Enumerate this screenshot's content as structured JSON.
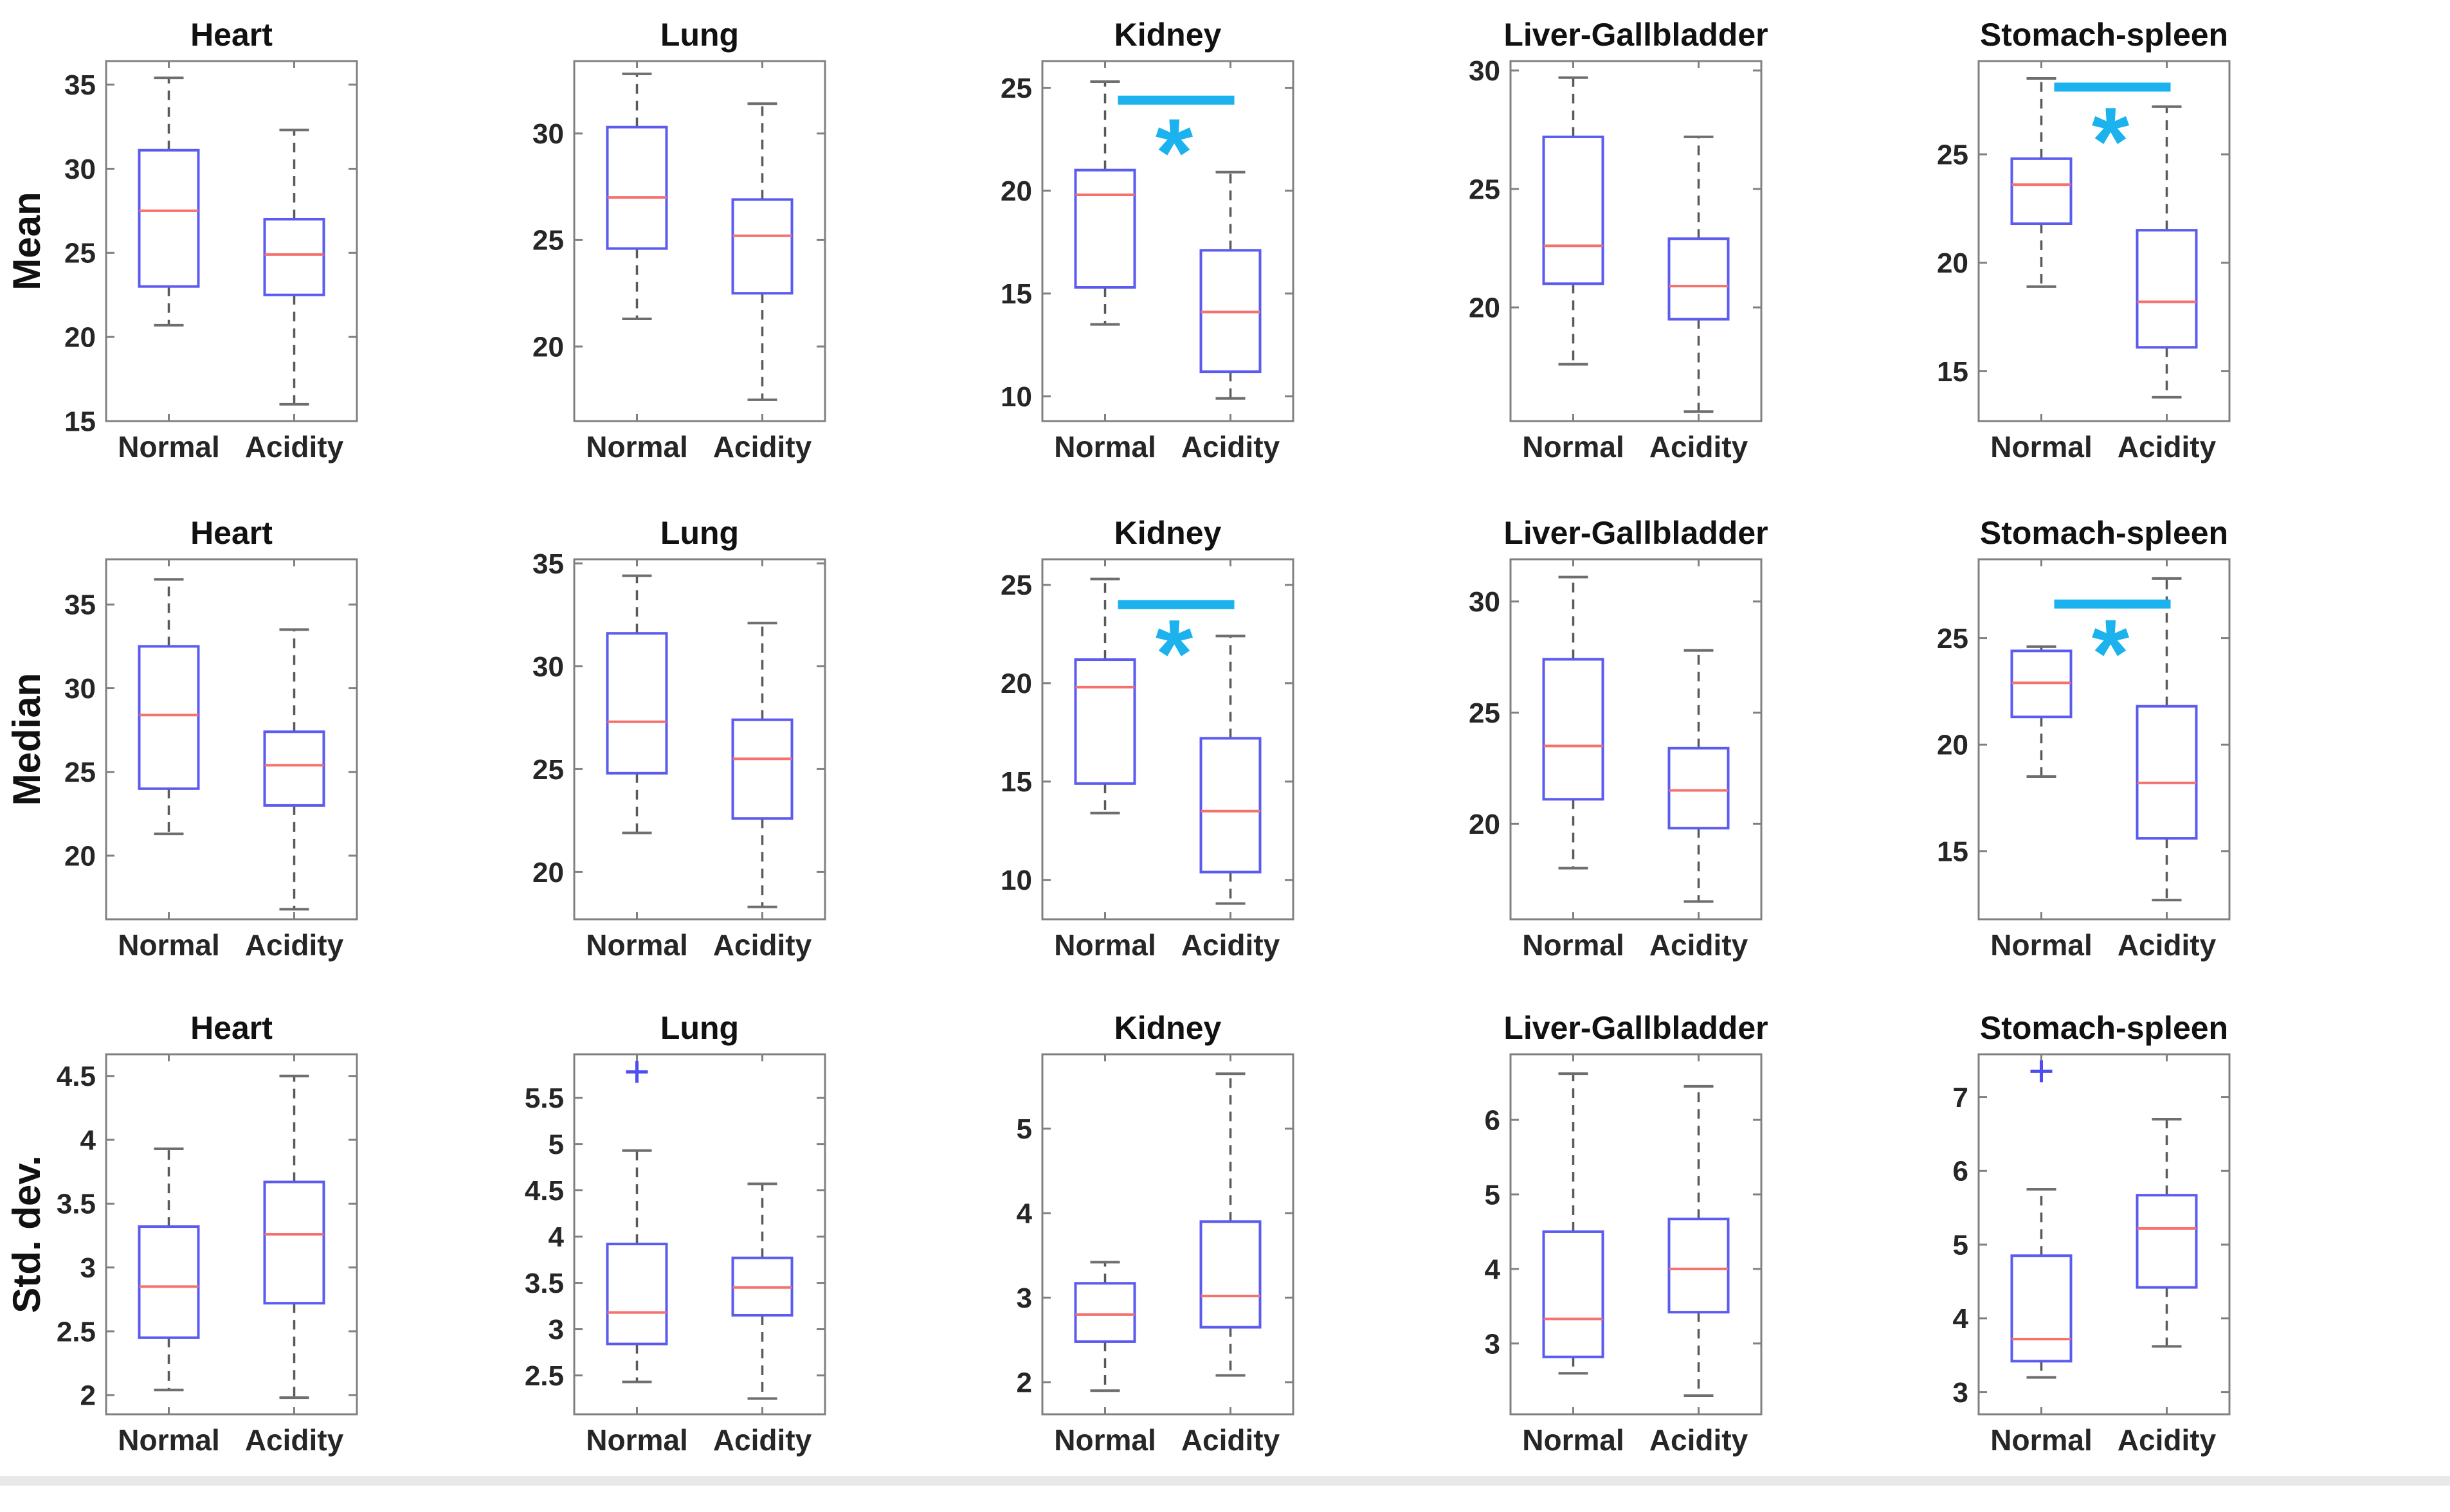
{
  "figure_title": "",
  "chart_data": {
    "type": "boxplot-grid",
    "categories": [
      "Normal",
      "Acidity"
    ],
    "sig_symbol": "*",
    "legend_position": "none",
    "grid": false,
    "colors": {
      "box": "#5b5bf0",
      "median": "#f4716e",
      "whisker": "#595959",
      "cap": "#6e6e6e",
      "axis": "#808080",
      "tick_text": "#262626",
      "title_text": "#111111",
      "row_label_text": "#111111",
      "significance": "#1cb2ee",
      "outlier": "#4d4df0",
      "bottom_bar": "#e8e8e8"
    },
    "rows": [
      {
        "label": "Mean",
        "plots": [
          {
            "title": "Heart",
            "ylim": [
              15,
              36.4
            ],
            "yticks": [
              15,
              20,
              25,
              30,
              35
            ],
            "groups": [
              {
                "name": "Normal",
                "whislo": 20.7,
                "q1": 23.0,
                "med": 27.5,
                "q3": 31.1,
                "whishi": 35.4,
                "outliers": []
              },
              {
                "name": "Acidity",
                "whislo": 16.0,
                "q1": 22.5,
                "med": 24.9,
                "q3": 27.0,
                "whishi": 32.3,
                "outliers": []
              }
            ],
            "significance": null
          },
          {
            "title": "Lung",
            "ylim": [
              16.5,
              33.4
            ],
            "yticks": [
              20,
              25,
              30
            ],
            "groups": [
              {
                "name": "Normal",
                "whislo": 21.3,
                "q1": 24.6,
                "med": 27.0,
                "q3": 30.3,
                "whishi": 32.8,
                "outliers": []
              },
              {
                "name": "Acidity",
                "whislo": 17.5,
                "q1": 22.5,
                "med": 25.2,
                "q3": 26.9,
                "whishi": 31.4,
                "outliers": []
              }
            ],
            "significance": null
          },
          {
            "title": "Kidney",
            "ylim": [
              8.8,
              26.3
            ],
            "yticks": [
              10,
              15,
              20,
              25
            ],
            "groups": [
              {
                "name": "Normal",
                "whislo": 13.5,
                "q1": 15.3,
                "med": 19.8,
                "q3": 21.0,
                "whishi": 25.3,
                "outliers": []
              },
              {
                "name": "Acidity",
                "whislo": 9.9,
                "q1": 11.2,
                "med": 14.1,
                "q3": 17.1,
                "whishi": 20.9,
                "outliers": []
              }
            ],
            "significance": {
              "bar_y": 24.4,
              "star_y": 22.8
            }
          },
          {
            "title": "Liver-Gallbladder",
            "ylim": [
              15.2,
              30.4
            ],
            "yticks": [
              20,
              25,
              30
            ],
            "groups": [
              {
                "name": "Normal",
                "whislo": 17.6,
                "q1": 21.0,
                "med": 22.6,
                "q3": 27.2,
                "whishi": 29.7,
                "outliers": []
              },
              {
                "name": "Acidity",
                "whislo": 15.6,
                "q1": 19.5,
                "med": 20.9,
                "q3": 22.9,
                "whishi": 27.2,
                "outliers": []
              }
            ],
            "significance": null
          },
          {
            "title": "Stomach-spleen",
            "ylim": [
              12.7,
              29.3
            ],
            "yticks": [
              15,
              20,
              25
            ],
            "groups": [
              {
                "name": "Normal",
                "whislo": 18.9,
                "q1": 21.8,
                "med": 23.6,
                "q3": 24.8,
                "whishi": 28.5,
                "outliers": []
              },
              {
                "name": "Acidity",
                "whislo": 13.8,
                "q1": 16.1,
                "med": 18.2,
                "q3": 21.5,
                "whishi": 27.2,
                "outliers": []
              }
            ],
            "significance": {
              "bar_y": 28.1,
              "star_y": 26.5
            }
          }
        ]
      },
      {
        "label": "Median",
        "plots": [
          {
            "title": "Heart",
            "ylim": [
              16.2,
              37.7
            ],
            "yticks": [
              20,
              25,
              30,
              35
            ],
            "groups": [
              {
                "name": "Normal",
                "whislo": 21.3,
                "q1": 24.0,
                "med": 28.4,
                "q3": 32.5,
                "whishi": 36.5,
                "outliers": []
              },
              {
                "name": "Acidity",
                "whislo": 16.8,
                "q1": 23.0,
                "med": 25.4,
                "q3": 27.4,
                "whishi": 33.5,
                "outliers": []
              }
            ],
            "significance": null
          },
          {
            "title": "Lung",
            "ylim": [
              17.7,
              35.2
            ],
            "yticks": [
              20,
              25,
              30,
              35
            ],
            "groups": [
              {
                "name": "Normal",
                "whislo": 21.9,
                "q1": 24.8,
                "med": 27.3,
                "q3": 31.6,
                "whishi": 34.4,
                "outliers": []
              },
              {
                "name": "Acidity",
                "whislo": 18.3,
                "q1": 22.6,
                "med": 25.5,
                "q3": 27.4,
                "whishi": 32.1,
                "outliers": []
              }
            ],
            "significance": null
          },
          {
            "title": "Kidney",
            "ylim": [
              8.0,
              26.3
            ],
            "yticks": [
              10,
              15,
              20,
              25
            ],
            "groups": [
              {
                "name": "Normal",
                "whislo": 13.4,
                "q1": 14.9,
                "med": 19.8,
                "q3": 21.2,
                "whishi": 25.3,
                "outliers": []
              },
              {
                "name": "Acidity",
                "whislo": 8.8,
                "q1": 10.4,
                "med": 13.5,
                "q3": 17.2,
                "whishi": 22.4,
                "outliers": []
              }
            ],
            "significance": {
              "bar_y": 24.0,
              "star_y": 22.5
            }
          },
          {
            "title": "Liver-Gallbladder",
            "ylim": [
              15.7,
              31.9
            ],
            "yticks": [
              20,
              25,
              30
            ],
            "groups": [
              {
                "name": "Normal",
                "whislo": 18.0,
                "q1": 21.1,
                "med": 23.5,
                "q3": 27.4,
                "whishi": 31.1,
                "outliers": []
              },
              {
                "name": "Acidity",
                "whislo": 16.5,
                "q1": 19.8,
                "med": 21.5,
                "q3": 23.4,
                "whishi": 27.8,
                "outliers": []
              }
            ],
            "significance": null
          },
          {
            "title": "Stomach-spleen",
            "ylim": [
              11.8,
              28.7
            ],
            "yticks": [
              15,
              20,
              25
            ],
            "groups": [
              {
                "name": "Normal",
                "whislo": 18.5,
                "q1": 21.3,
                "med": 22.9,
                "q3": 24.4,
                "whishi": 24.6,
                "outliers": []
              },
              {
                "name": "Acidity",
                "whislo": 12.7,
                "q1": 15.6,
                "med": 18.2,
                "q3": 21.8,
                "whishi": 27.8,
                "outliers": []
              }
            ],
            "significance": {
              "bar_y": 26.6,
              "star_y": 25.2
            }
          }
        ]
      },
      {
        "label": "Std. dev.",
        "plots": [
          {
            "title": "Heart",
            "ylim": [
              1.85,
              4.67
            ],
            "yticks": [
              2,
              2.5,
              3,
              3.5,
              4,
              4.5
            ],
            "groups": [
              {
                "name": "Normal",
                "whislo": 2.04,
                "q1": 2.45,
                "med": 2.85,
                "q3": 3.32,
                "whishi": 3.93,
                "outliers": []
              },
              {
                "name": "Acidity",
                "whislo": 1.98,
                "q1": 2.72,
                "med": 3.26,
                "q3": 3.67,
                "whishi": 4.5,
                "outliers": []
              }
            ],
            "significance": null
          },
          {
            "title": "Lung",
            "ylim": [
              2.08,
              5.97
            ],
            "yticks": [
              2.5,
              3,
              3.5,
              4,
              4.5,
              5,
              5.5
            ],
            "groups": [
              {
                "name": "Normal",
                "whislo": 2.43,
                "q1": 2.84,
                "med": 3.18,
                "q3": 3.92,
                "whishi": 4.93,
                "outliers": [
                  5.78
                ]
              },
              {
                "name": "Acidity",
                "whislo": 2.25,
                "q1": 3.15,
                "med": 3.45,
                "q3": 3.77,
                "whishi": 4.57,
                "outliers": []
              }
            ],
            "significance": null
          },
          {
            "title": "Kidney",
            "ylim": [
              1.62,
              5.88
            ],
            "yticks": [
              2,
              3,
              4,
              5
            ],
            "groups": [
              {
                "name": "Normal",
                "whislo": 1.9,
                "q1": 2.48,
                "med": 2.8,
                "q3": 3.17,
                "whishi": 3.42,
                "outliers": []
              },
              {
                "name": "Acidity",
                "whislo": 2.08,
                "q1": 2.65,
                "med": 3.02,
                "q3": 3.9,
                "whishi": 5.65,
                "outliers": []
              }
            ],
            "significance": null
          },
          {
            "title": "Liver-Gallbladder",
            "ylim": [
              2.05,
              6.88
            ],
            "yticks": [
              3,
              4,
              5,
              6
            ],
            "groups": [
              {
                "name": "Normal",
                "whislo": 2.6,
                "q1": 2.82,
                "med": 3.33,
                "q3": 4.5,
                "whishi": 6.62,
                "outliers": []
              },
              {
                "name": "Acidity",
                "whislo": 2.3,
                "q1": 3.42,
                "med": 4.0,
                "q3": 4.67,
                "whishi": 6.45,
                "outliers": []
              }
            ],
            "significance": null
          },
          {
            "title": "Stomach-spleen",
            "ylim": [
              2.7,
              7.58
            ],
            "yticks": [
              3,
              4,
              5,
              6,
              7
            ],
            "groups": [
              {
                "name": "Normal",
                "whislo": 3.2,
                "q1": 3.42,
                "med": 3.72,
                "q3": 4.85,
                "whishi": 5.75,
                "outliers": [
                  7.35
                ]
              },
              {
                "name": "Acidity",
                "whislo": 3.62,
                "q1": 4.42,
                "med": 5.22,
                "q3": 5.67,
                "whishi": 6.7,
                "outliers": []
              }
            ],
            "significance": null
          }
        ]
      }
    ]
  }
}
